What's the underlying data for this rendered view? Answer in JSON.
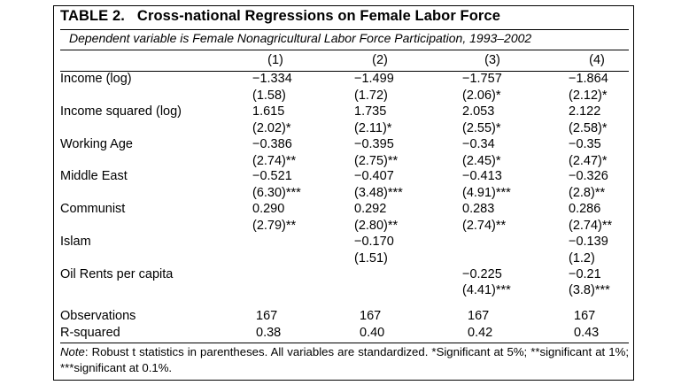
{
  "title": {
    "number": "TABLE 2.",
    "text": "Cross-national Regressions on Female Labor Force"
  },
  "subtitle": "Dependent variable is Female Nonagricultural Labor Force Participation, 1993–2002",
  "columns": [
    "(1)",
    "(2)",
    "(3)",
    "(4)"
  ],
  "rows": [
    {
      "label": "Income (log)",
      "coef": [
        "−1.334",
        "−1.499",
        "−1.757",
        "−1.864"
      ],
      "tstat": [
        "(1.58)",
        "(1.72)",
        "(2.06)*",
        "(2.12)*"
      ]
    },
    {
      "label": "Income squared (log)",
      "coef": [
        "1.615",
        "1.735",
        "2.053",
        "2.122"
      ],
      "tstat": [
        "(2.02)*",
        "(2.11)*",
        "(2.55)*",
        "(2.58)*"
      ]
    },
    {
      "label": "Working Age",
      "coef": [
        "−0.386",
        "−0.395",
        "−0.34",
        "−0.35"
      ],
      "tstat": [
        "(2.74)**",
        "(2.75)**",
        "(2.45)*",
        "(2.47)*"
      ]
    },
    {
      "label": "Middle East",
      "coef": [
        "−0.521",
        "−0.407",
        "−0.413",
        "−0.326"
      ],
      "tstat": [
        "(6.30)***",
        "(3.48)***",
        "(4.91)***",
        "(2.8)**"
      ]
    },
    {
      "label": "Communist",
      "coef": [
        "0.290",
        "0.292",
        "0.283",
        "0.286"
      ],
      "tstat": [
        "(2.79)**",
        "(2.80)**",
        "(2.74)**",
        "(2.74)**"
      ]
    },
    {
      "label": "Islam",
      "coef": [
        "",
        "−0.170",
        "",
        "−0.139"
      ],
      "tstat": [
        "",
        "(1.51)",
        "",
        "(1.2)"
      ]
    },
    {
      "label": "Oil Rents per capita",
      "coef": [
        "",
        "",
        "−0.225",
        "−0.21"
      ],
      "tstat": [
        "",
        "",
        "(4.41)***",
        "(3.8)***"
      ]
    }
  ],
  "summary": [
    {
      "label": "Observations",
      "values": [
        "167",
        "167",
        "167",
        "167"
      ]
    },
    {
      "label": "R-squared",
      "values": [
        "0.38",
        "0.40",
        "0.42",
        "0.43"
      ]
    }
  ],
  "note": {
    "prefix": "Note",
    "text": ": Robust t statistics in parentheses. All variables are standardized. *Significant at 5%; **significant at 1%; ***significant at 0.1%."
  }
}
